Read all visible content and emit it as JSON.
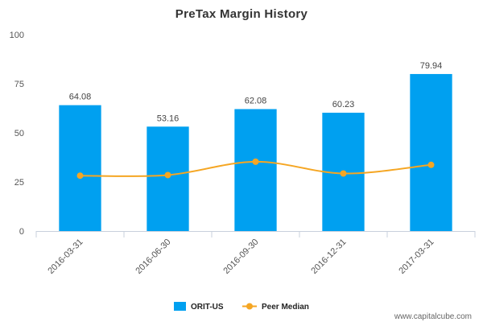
{
  "chart_data": {
    "type": "bar",
    "title": "PreTax Margin History",
    "categories": [
      "2016-03-31",
      "2016-06-30",
      "2016-09-30",
      "2016-12-31",
      "2017-03-31"
    ],
    "series": [
      {
        "name": "ORIT-US",
        "type": "bar",
        "values": [
          64.08,
          53.16,
          62.08,
          60.23,
          79.94
        ],
        "color": "#00a0f0",
        "data_labels": [
          "64.08",
          "53.16",
          "62.08",
          "60.23",
          "79.94"
        ]
      },
      {
        "name": "Peer Median",
        "type": "line",
        "values": [
          28.2,
          28.5,
          35.3,
          29.3,
          33.7
        ],
        "color": "#f5a623"
      }
    ],
    "ylim": [
      0,
      100
    ],
    "yticks": [
      "0",
      "25",
      "50",
      "75",
      "100"
    ],
    "grid": false,
    "legend": "bottom-center"
  },
  "watermark": "www.capitalcube.com"
}
